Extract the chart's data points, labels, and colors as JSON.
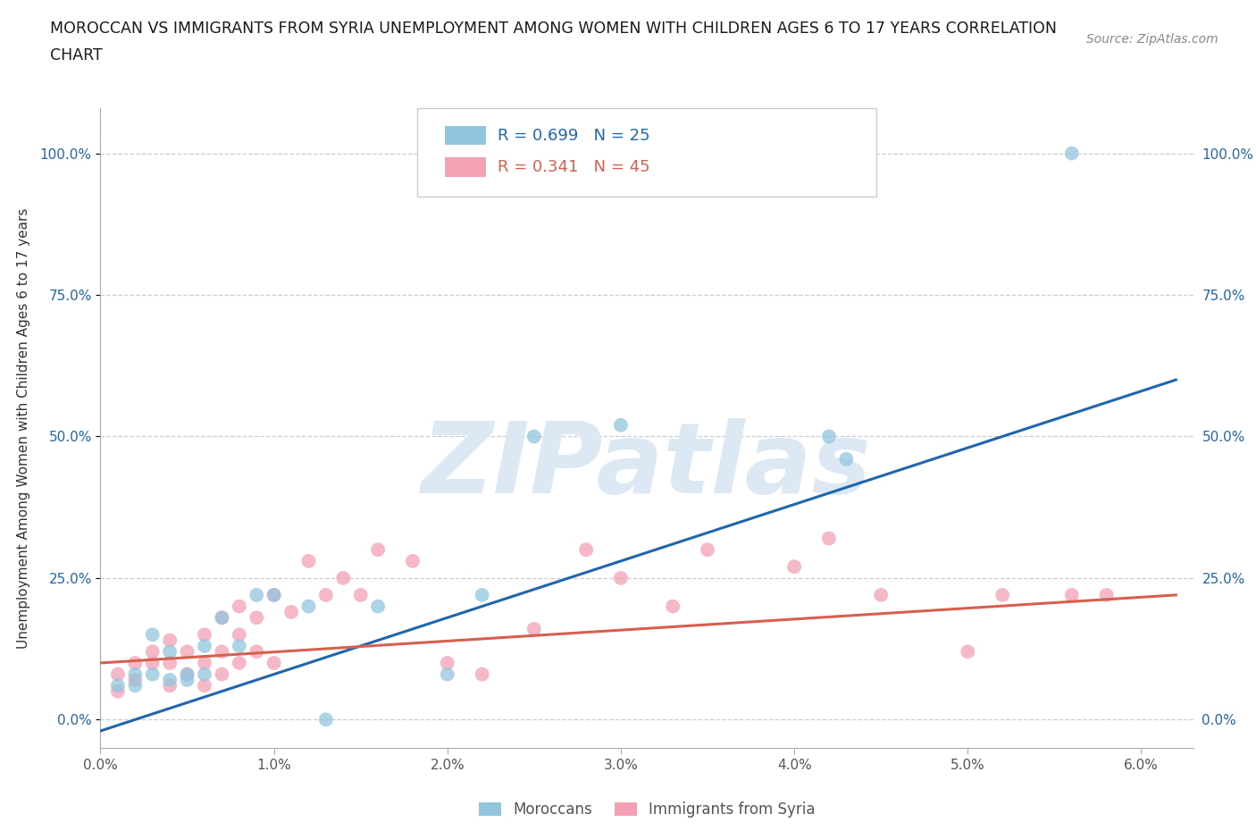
{
  "title_line1": "MOROCCAN VS IMMIGRANTS FROM SYRIA UNEMPLOYMENT AMONG WOMEN WITH CHILDREN AGES 6 TO 17 YEARS CORRELATION",
  "title_line2": "CHART",
  "source": "Source: ZipAtlas.com",
  "ylabel": "Unemployment Among Women with Children Ages 6 to 17 years",
  "xlim": [
    0.0,
    0.063
  ],
  "ylim": [
    -0.05,
    1.08
  ],
  "ytick_vals": [
    0.0,
    0.25,
    0.5,
    0.75,
    1.0
  ],
  "ytick_labels": [
    "0.0%",
    "25.0%",
    "50.0%",
    "75.0%",
    "100.0%"
  ],
  "xtick_vals": [
    0.0,
    0.01,
    0.02,
    0.03,
    0.04,
    0.05,
    0.06
  ],
  "xtick_labels": [
    "0.0%",
    "1.0%",
    "2.0%",
    "3.0%",
    "4.0%",
    "5.0%",
    "6.0%"
  ],
  "blue_scatter_color": "#92c5de",
  "pink_scatter_color": "#f4a0b5",
  "blue_line_color": "#2166ac",
  "pink_line_color": "#d6604d",
  "watermark": "ZIPatlas",
  "watermark_color": "#dce9f5",
  "background_color": "#ffffff",
  "legend_blue_r": "0.699",
  "legend_blue_n": "25",
  "legend_pink_r": "0.341",
  "legend_pink_n": "45",
  "legend_label_blue": "Moroccans",
  "legend_label_pink": "Immigrants from Syria",
  "blue_r_color": "#2166ac",
  "pink_r_color": "#d6604d",
  "moroccan_x": [
    0.001,
    0.002,
    0.002,
    0.003,
    0.003,
    0.004,
    0.004,
    0.005,
    0.005,
    0.006,
    0.006,
    0.007,
    0.008,
    0.009,
    0.01,
    0.012,
    0.013,
    0.016,
    0.02,
    0.022,
    0.025,
    0.03,
    0.042,
    0.043,
    0.056
  ],
  "moroccan_y": [
    0.06,
    0.06,
    0.08,
    0.08,
    0.15,
    0.07,
    0.12,
    0.07,
    0.08,
    0.13,
    0.08,
    0.18,
    0.13,
    0.22,
    0.22,
    0.2,
    0.0,
    0.2,
    0.08,
    0.22,
    0.5,
    0.52,
    0.5,
    0.46,
    1.0
  ],
  "syria_x": [
    0.001,
    0.001,
    0.002,
    0.002,
    0.003,
    0.003,
    0.004,
    0.004,
    0.004,
    0.005,
    0.005,
    0.006,
    0.006,
    0.006,
    0.007,
    0.007,
    0.007,
    0.008,
    0.008,
    0.008,
    0.009,
    0.009,
    0.01,
    0.01,
    0.011,
    0.012,
    0.013,
    0.014,
    0.015,
    0.016,
    0.018,
    0.02,
    0.022,
    0.025,
    0.028,
    0.03,
    0.033,
    0.035,
    0.04,
    0.042,
    0.045,
    0.05,
    0.052,
    0.056,
    0.058
  ],
  "syria_y": [
    0.05,
    0.08,
    0.1,
    0.07,
    0.1,
    0.12,
    0.06,
    0.1,
    0.14,
    0.08,
    0.12,
    0.06,
    0.1,
    0.15,
    0.08,
    0.12,
    0.18,
    0.1,
    0.15,
    0.2,
    0.12,
    0.18,
    0.1,
    0.22,
    0.19,
    0.28,
    0.22,
    0.25,
    0.22,
    0.3,
    0.28,
    0.1,
    0.08,
    0.16,
    0.3,
    0.25,
    0.2,
    0.3,
    0.27,
    0.32,
    0.22,
    0.12,
    0.22,
    0.22,
    0.22
  ],
  "blue_line_x0": 0.0,
  "blue_line_y0": -0.02,
  "blue_line_x1": 0.062,
  "blue_line_y1": 0.6,
  "pink_line_x0": 0.0,
  "pink_line_y0": 0.1,
  "pink_line_x1": 0.062,
  "pink_line_y1": 0.22
}
